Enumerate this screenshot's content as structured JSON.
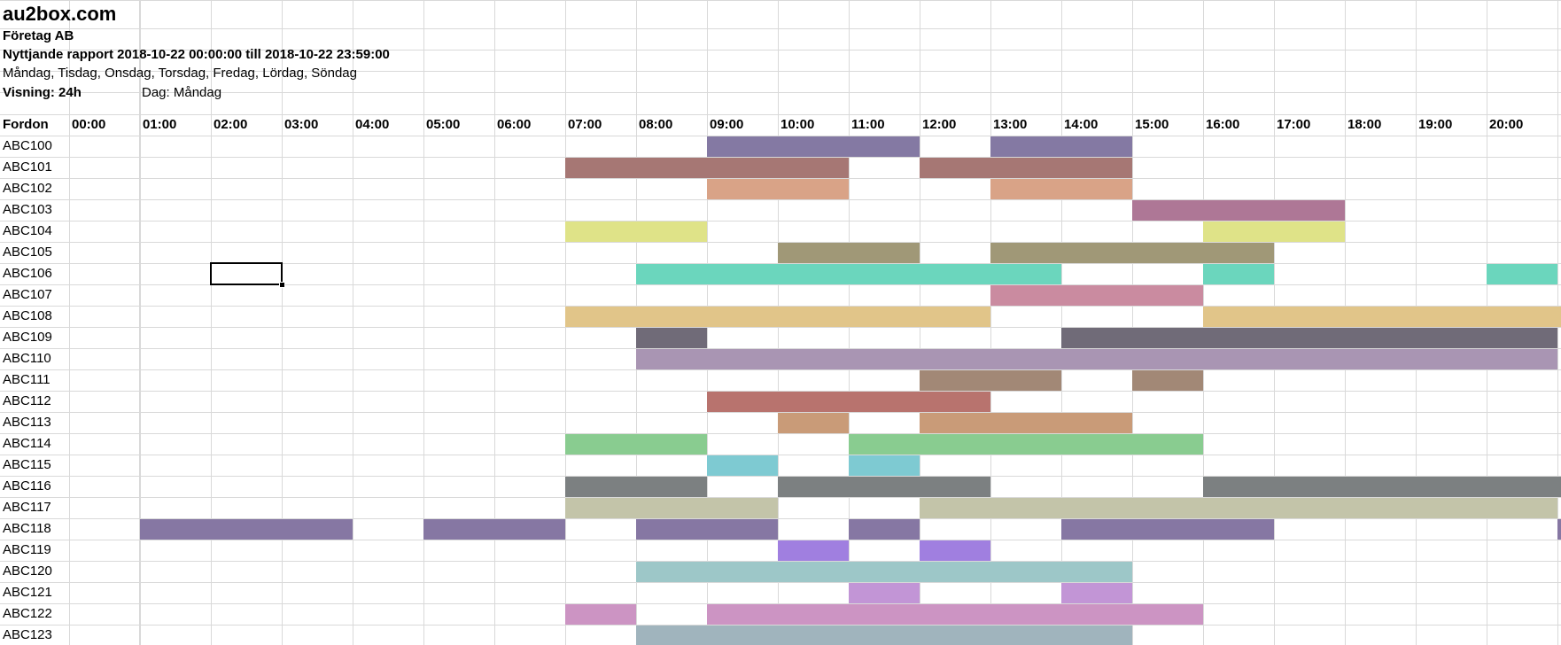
{
  "header": {
    "site": "au2box.com",
    "company": "Företag AB",
    "report": "Nyttjande rapport 2018-10-22 00:00:00 till 2018-10-22 23:59:00",
    "days": "Måndag, Tisdag, Onsdag, Torsdag, Fredag, Lördag, Söndag",
    "view": "Visning: 24h",
    "day": "Dag: Måndag"
  },
  "table": {
    "first_col_header": "Fordon",
    "hours": [
      "00:00",
      "01:00",
      "02:00",
      "03:00",
      "04:00",
      "05:00",
      "06:00",
      "07:00",
      "08:00",
      "09:00",
      "10:00",
      "11:00",
      "12:00",
      "13:00",
      "14:00",
      "15:00",
      "16:00",
      "17:00",
      "18:00",
      "19:00",
      "20:00"
    ],
    "rows": [
      {
        "vehicle": "ABC100",
        "color": "#8479a3",
        "bookings": [
          [
            9,
            12
          ],
          [
            13,
            15
          ]
        ]
      },
      {
        "vehicle": "ABC101",
        "color": "#a67774",
        "bookings": [
          [
            7,
            11
          ],
          [
            12,
            15
          ]
        ]
      },
      {
        "vehicle": "ABC102",
        "color": "#d9a387",
        "bookings": [
          [
            9,
            11
          ],
          [
            13,
            15
          ]
        ]
      },
      {
        "vehicle": "ABC103",
        "color": "#ae7796",
        "bookings": [
          [
            15,
            18
          ]
        ]
      },
      {
        "vehicle": "ABC104",
        "color": "#dfe388",
        "bookings": [
          [
            7,
            9
          ],
          [
            16,
            18
          ]
        ]
      },
      {
        "vehicle": "ABC105",
        "color": "#a09877",
        "bookings": [
          [
            10,
            12
          ],
          [
            13,
            17
          ]
        ]
      },
      {
        "vehicle": "ABC106",
        "color": "#6bd6bd",
        "bookings": [
          [
            8,
            14
          ],
          [
            16,
            17
          ],
          [
            20,
            21
          ]
        ]
      },
      {
        "vehicle": "ABC107",
        "color": "#ca8ba0",
        "bookings": [
          [
            13,
            16
          ]
        ]
      },
      {
        "vehicle": "ABC108",
        "color": "#e1c589",
        "bookings": [
          [
            7,
            13
          ],
          [
            16,
            21.1
          ]
        ]
      },
      {
        "vehicle": "ABC109",
        "color": "#706b78",
        "bookings": [
          [
            8,
            9
          ],
          [
            14,
            21
          ]
        ]
      },
      {
        "vehicle": "ABC110",
        "color": "#a995b3",
        "bookings": [
          [
            8,
            21
          ]
        ]
      },
      {
        "vehicle": "ABC111",
        "color": "#a28876",
        "bookings": [
          [
            12,
            14
          ],
          [
            15,
            16
          ]
        ]
      },
      {
        "vehicle": "ABC112",
        "color": "#b8736e",
        "bookings": [
          [
            9,
            13
          ]
        ]
      },
      {
        "vehicle": "ABC113",
        "color": "#c99b78",
        "bookings": [
          [
            10,
            11
          ],
          [
            12,
            15
          ]
        ]
      },
      {
        "vehicle": "ABC114",
        "color": "#89cc90",
        "bookings": [
          [
            7,
            9
          ],
          [
            11,
            16
          ]
        ]
      },
      {
        "vehicle": "ABC115",
        "color": "#7ecad2",
        "bookings": [
          [
            9,
            10
          ],
          [
            11,
            12
          ]
        ]
      },
      {
        "vehicle": "ABC116",
        "color": "#7c8081",
        "bookings": [
          [
            7,
            9
          ],
          [
            10,
            13
          ],
          [
            16,
            21.1
          ]
        ]
      },
      {
        "vehicle": "ABC117",
        "color": "#c3c4a9",
        "bookings": [
          [
            7,
            10
          ],
          [
            12,
            21
          ]
        ]
      },
      {
        "vehicle": "ABC118",
        "color": "#8677a3",
        "bookings": [
          [
            1,
            4
          ],
          [
            5,
            7
          ],
          [
            8,
            10
          ],
          [
            11,
            12
          ],
          [
            14,
            17
          ],
          [
            21,
            21.1
          ]
        ]
      },
      {
        "vehicle": "ABC119",
        "color": "#a07fe0",
        "bookings": [
          [
            10,
            11
          ],
          [
            12,
            13
          ]
        ]
      },
      {
        "vehicle": "ABC120",
        "color": "#9dc7c8",
        "bookings": [
          [
            8,
            15
          ]
        ]
      },
      {
        "vehicle": "ABC121",
        "color": "#c295d6",
        "bookings": [
          [
            11,
            12
          ],
          [
            14,
            15
          ]
        ]
      },
      {
        "vehicle": "ABC122",
        "color": "#cc94c3",
        "bookings": [
          [
            7,
            8
          ],
          [
            9,
            16
          ]
        ]
      },
      {
        "vehicle": "ABC123",
        "color": "#a0b4bd",
        "bookings": [
          [
            8,
            15
          ]
        ]
      }
    ]
  },
  "selected_cell": {
    "column": "02:00",
    "row": "ABC106"
  }
}
